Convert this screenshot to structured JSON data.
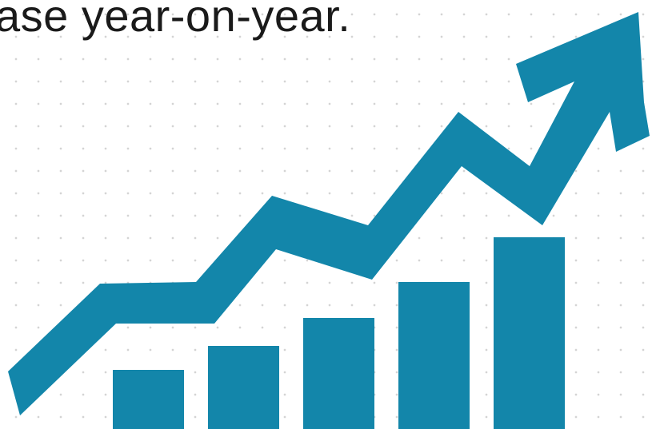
{
  "caption": "ase year-on-year.",
  "graphic": {
    "icon": "growth-chart-icon",
    "color": "#1386aa",
    "bars": [
      0.25,
      0.35,
      0.47,
      0.62,
      0.81
    ]
  }
}
